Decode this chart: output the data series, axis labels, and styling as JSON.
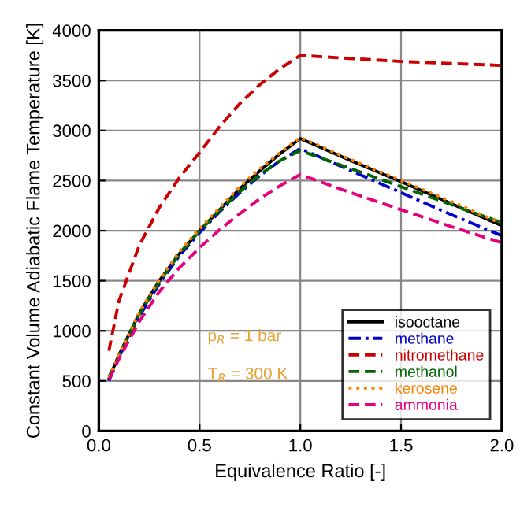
{
  "chart_data": {
    "type": "line",
    "xlabel": "Equivalence Ratio [-]",
    "ylabel": "Constant Volume Adiabatic Flame Temperature [K]",
    "x": [
      0.05,
      0.1,
      0.2,
      0.3,
      0.4,
      0.5,
      0.6,
      0.7,
      0.8,
      0.9,
      1.0,
      1.25,
      1.5,
      1.75,
      2.0
    ],
    "series": [
      {
        "name": "isooctane",
        "color": "#000000",
        "line_style": "solid",
        "values": [
          520,
          760,
          1170,
          1500,
          1770,
          2000,
          2210,
          2420,
          2600,
          2770,
          2920,
          2700,
          2490,
          2270,
          2050
        ]
      },
      {
        "name": "methane",
        "color": "#0000cc",
        "line_style": "dashdot",
        "values": [
          500,
          740,
          1140,
          1470,
          1750,
          1980,
          2190,
          2380,
          2550,
          2700,
          2820,
          2600,
          2380,
          2160,
          1950
        ]
      },
      {
        "name": "nitromethane",
        "color": "#cc0000",
        "line_style": "dashed",
        "values": [
          800,
          1300,
          1850,
          2230,
          2530,
          2780,
          3040,
          3270,
          3460,
          3620,
          3750,
          3720,
          3690,
          3670,
          3650
        ]
      },
      {
        "name": "methanol",
        "color": "#006600",
        "line_style": "dashed",
        "values": [
          540,
          750,
          1160,
          1490,
          1770,
          2000,
          2200,
          2390,
          2560,
          2700,
          2800,
          2620,
          2440,
          2260,
          2080
        ]
      },
      {
        "name": "kerosene",
        "color": "#ff7f00",
        "line_style": "dotted",
        "values": [
          530,
          760,
          1180,
          1510,
          1790,
          2020,
          2230,
          2440,
          2620,
          2780,
          2930,
          2710,
          2500,
          2290,
          2070
        ]
      },
      {
        "name": "ammonia",
        "color": "#e6007e",
        "line_style": "dashed",
        "values": [
          510,
          720,
          1090,
          1390,
          1630,
          1830,
          2010,
          2170,
          2320,
          2450,
          2560,
          2380,
          2210,
          2040,
          1880
        ]
      }
    ],
    "annotations": [
      "p$_{R}$ = 1 bar",
      "T$_{R}$ = 300 K"
    ],
    "xlim": [
      0,
      2
    ],
    "xticks": [
      {
        "value": 0,
        "label": "0.0"
      },
      0.5,
      {
        "value": 1,
        "label": "1.0"
      },
      1.5,
      {
        "value": 2,
        "label": "2.0"
      }
    ],
    "ylim": [
      0,
      4000
    ],
    "yticks": [
      0,
      500,
      1000,
      1500,
      2000,
      2500,
      3000,
      3500,
      4000
    ],
    "grid": true,
    "legend": "bottom right",
    "marker": "none"
  }
}
